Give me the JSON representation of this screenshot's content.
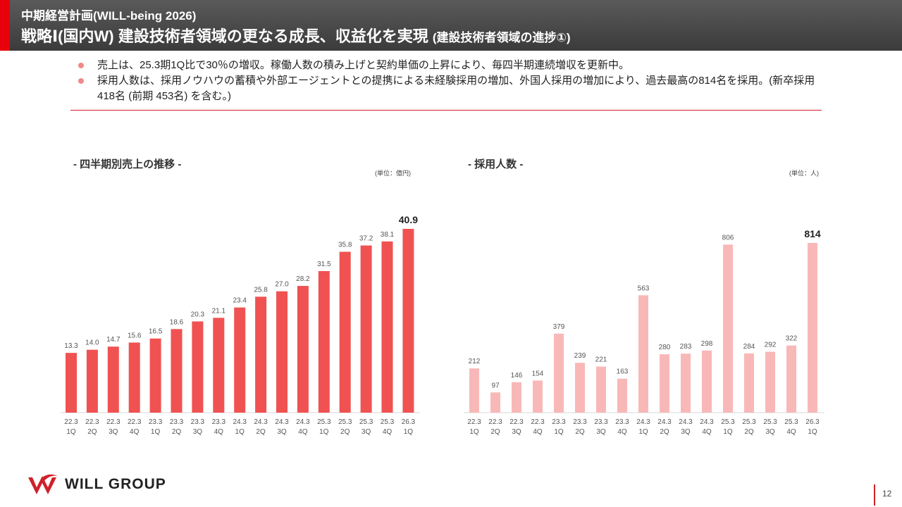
{
  "header": {
    "subtitle": "中期経営計画(WILL-being 2026)",
    "title_main": "戦略Ⅰ(国内W) 建設技術者領域の更なる成長、収益化を実現",
    "title_note": "(建設技術者領域の進捗①)"
  },
  "bullets": [
    "売上は、25.3期1Q比で30％の増収。稼働人数の積み上げと契約単価の上昇により、毎四半期連続増収を更新中。",
    "採用人数は、採用ノウハウの蓄積や外部エージェントとの提携による未経験採用の増加、外国人採用の増加により、過去最高の814名を採用。(新卒採用 418名 (前期 453名) を含む。)"
  ],
  "colors": {
    "accent": "#e8000b",
    "sales_bar": "#f05252",
    "hires_bar": "#f9b8b8",
    "bullet_dot": "#f08a8a"
  },
  "chart_data": [
    {
      "type": "bar",
      "title": "- 四半期別売上の推移 -",
      "unit": "(単位：億円)",
      "categories": [
        [
          "22.3",
          "1Q"
        ],
        [
          "22.3",
          "2Q"
        ],
        [
          "22.3",
          "3Q"
        ],
        [
          "22.3",
          "4Q"
        ],
        [
          "23.3",
          "1Q"
        ],
        [
          "23.3",
          "2Q"
        ],
        [
          "23.3",
          "3Q"
        ],
        [
          "23.3",
          "4Q"
        ],
        [
          "24.3",
          "1Q"
        ],
        [
          "24.3",
          "2Q"
        ],
        [
          "24.3",
          "3Q"
        ],
        [
          "24.3",
          "4Q"
        ],
        [
          "25.3",
          "1Q"
        ],
        [
          "25.3",
          "2Q"
        ],
        [
          "25.3",
          "3Q"
        ],
        [
          "25.3",
          "4Q"
        ],
        [
          "26.3",
          "1Q"
        ]
      ],
      "values": [
        13.3,
        14.0,
        14.7,
        15.6,
        16.5,
        18.6,
        20.3,
        21.1,
        23.4,
        25.8,
        27.0,
        28.2,
        31.5,
        35.8,
        37.2,
        38.1,
        40.9
      ],
      "labels": [
        "13.3",
        "14.0",
        "14.7",
        "15.6",
        "16.5",
        "18.6",
        "20.3",
        "21.1",
        "23.4",
        "25.8",
        "27.0",
        "28.2",
        "31.5",
        "35.8",
        "37.2",
        "38.1",
        "40.9"
      ],
      "highlight_last": true
    },
    {
      "type": "bar",
      "title": "- 採用人数 -",
      "unit": "(単位：人)",
      "categories": [
        [
          "22.3",
          "1Q"
        ],
        [
          "22.3",
          "2Q"
        ],
        [
          "22.3",
          "3Q"
        ],
        [
          "22.3",
          "4Q"
        ],
        [
          "23.3",
          "1Q"
        ],
        [
          "23.3",
          "2Q"
        ],
        [
          "23.3",
          "3Q"
        ],
        [
          "23.3",
          "4Q"
        ],
        [
          "24.3",
          "1Q"
        ],
        [
          "24.3",
          "2Q"
        ],
        [
          "24.3",
          "3Q"
        ],
        [
          "24.3",
          "4Q"
        ],
        [
          "25.3",
          "1Q"
        ],
        [
          "25.3",
          "2Q"
        ],
        [
          "25.3",
          "3Q"
        ],
        [
          "25.3",
          "4Q"
        ],
        [
          "26.3",
          "1Q"
        ]
      ],
      "values": [
        212,
        97,
        146,
        154,
        379,
        239,
        221,
        163,
        563,
        280,
        283,
        298,
        806,
        284,
        292,
        322,
        814
      ],
      "labels": [
        "212",
        "97",
        "146",
        "154",
        "379",
        "239",
        "221",
        "163",
        "563",
        "280",
        "283",
        "298",
        "806",
        "284",
        "292",
        "322",
        "814"
      ],
      "highlight_last": true
    }
  ],
  "footer": {
    "logo_text": "WILL GROUP",
    "page_number": "12"
  }
}
